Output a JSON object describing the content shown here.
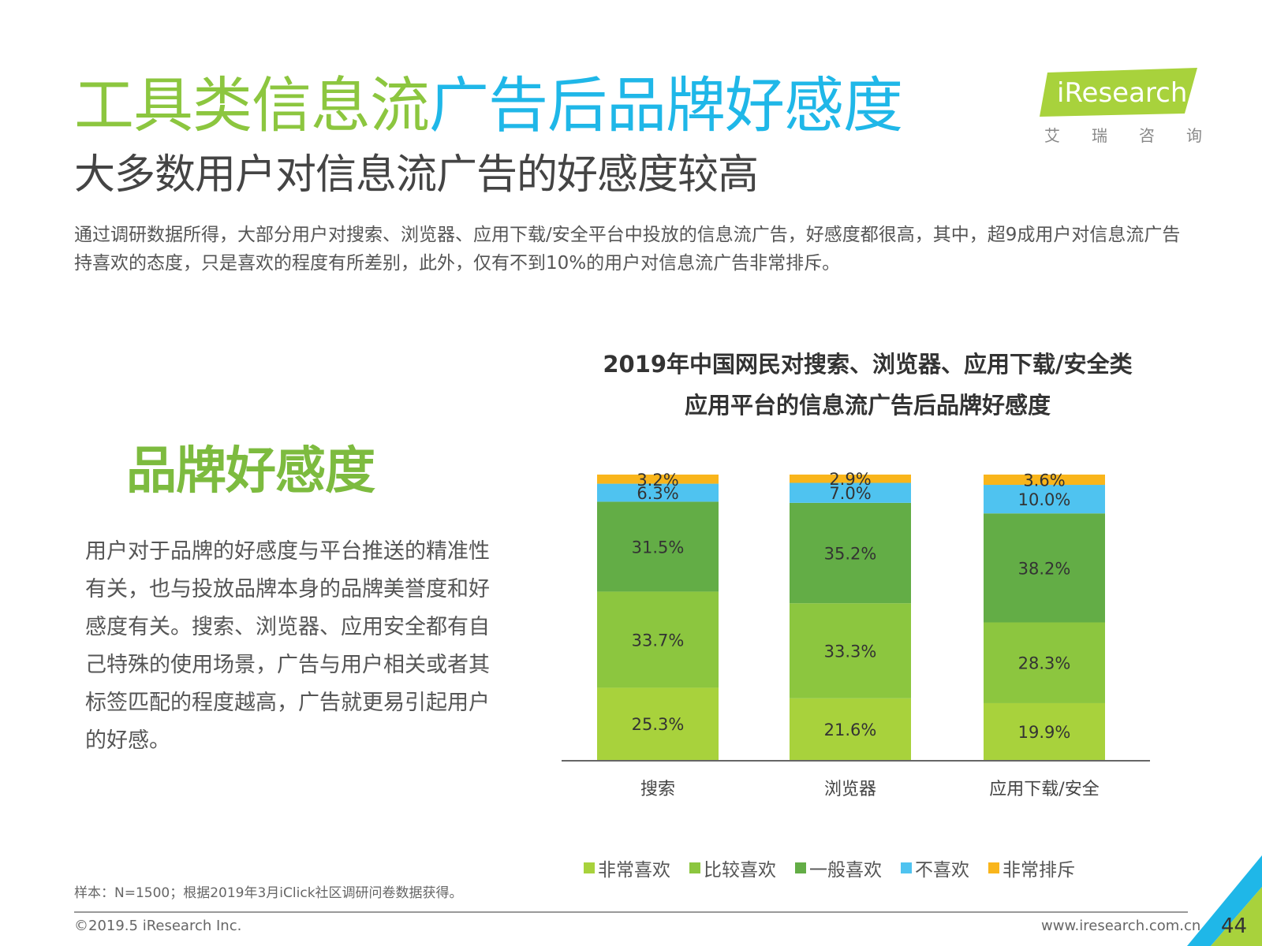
{
  "page": {
    "title_green": "工具类信息流",
    "title_blue": "广告后品牌好感度",
    "subtitle": "大多数用户对信息流广告的好感度较高",
    "intro": "通过调研数据所得，大部分用户对搜索、浏览器、应用下载/安全平台中投放的信息流广告，好感度都很高，其中，超9成用户对信息流广告持喜欢的态度，只是喜欢的程度有所差别，此外，仅有不到10%的用户对信息流广告非常排斥。"
  },
  "logo": {
    "text": "iResearch",
    "chars": [
      "艾",
      "瑞",
      "咨",
      "询"
    ]
  },
  "panel": {
    "title": "品牌好感度",
    "text": "用户对于品牌的好感度与平台推送的精准性有关，也与投放品牌本身的品牌美誉度和好感度有关。搜索、浏览器、应用安全都有自己特殊的使用场景，广告与用户相关或者其标签匹配的程度越高，广告就更易引起用户的好感。"
  },
  "chart_data": {
    "type": "bar",
    "stacked": true,
    "title_line1": "2019年中国网民对搜索、浏览器、应用下载/安全类",
    "title_line2": "应用平台的信息流广告后品牌好感度",
    "categories": [
      "搜索",
      "浏览器",
      "应用下载/安全"
    ],
    "series": [
      {
        "name": "非常喜欢",
        "color": "#a8d23c",
        "values": [
          25.3,
          21.6,
          19.9
        ]
      },
      {
        "name": "比较喜欢",
        "color": "#8cc63f",
        "values": [
          33.7,
          33.3,
          28.3
        ]
      },
      {
        "name": "一般喜欢",
        "color": "#63ad46",
        "values": [
          31.5,
          35.2,
          38.2
        ]
      },
      {
        "name": "不喜欢",
        "color": "#4fc3f0",
        "values": [
          6.3,
          7.0,
          10.0
        ]
      },
      {
        "name": "非常排斥",
        "color": "#f9b51b",
        "values": [
          3.2,
          2.9,
          3.6
        ]
      }
    ],
    "labels": [
      [
        "25.3%",
        "21.6%",
        "19.9%"
      ],
      [
        "33.7%",
        "33.3%",
        "28.3%"
      ],
      [
        "31.5%",
        "35.2%",
        "38.2%"
      ],
      [
        "6.3%",
        "7.0%",
        "10.0%"
      ],
      [
        "3.2%",
        "2.9%",
        "3.6%"
      ]
    ],
    "ylim": [
      0,
      100
    ],
    "legend_position": "bottom",
    "grid": false
  },
  "footer": {
    "source": "样本：N=1500；根据2019年3月iClick社区调研问卷数据获得。",
    "copyright": "©2019.5 iResearch Inc.",
    "website": "www.iresearch.com.cn",
    "page_number": "44"
  }
}
